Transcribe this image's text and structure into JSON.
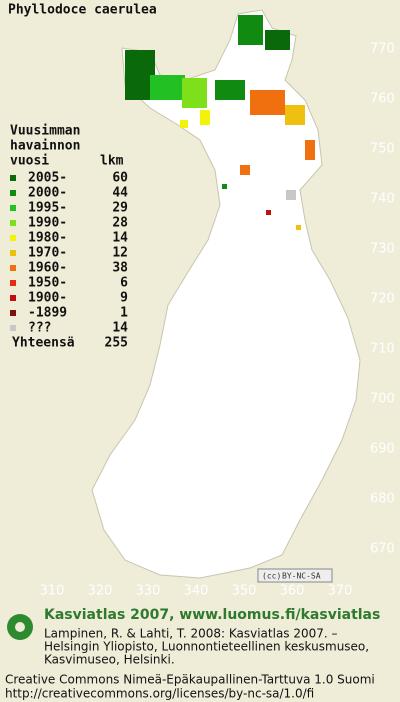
{
  "title": "Phyllodoce caerulea",
  "legend": {
    "heading": [
      "Vuusimman",
      "havainnon"
    ],
    "col1": "vuosi",
    "col2": "lkm",
    "rows": [
      {
        "label": "2005-",
        "count": 60,
        "color": "#0a6a0a"
      },
      {
        "label": "2000-",
        "count": 44,
        "color": "#108a10"
      },
      {
        "label": "1995-",
        "count": 29,
        "color": "#22c022"
      },
      {
        "label": "1990-",
        "count": 28,
        "color": "#7ee01a"
      },
      {
        "label": "1980-",
        "count": 14,
        "color": "#f2f20a"
      },
      {
        "label": "1970-",
        "count": 12,
        "color": "#f0c010"
      },
      {
        "label": "1960-",
        "count": 38,
        "color": "#f07010"
      },
      {
        "label": "1950-",
        "count": 6,
        "color": "#e03010"
      },
      {
        "label": "1900-",
        "count": 9,
        "color": "#c01010"
      },
      {
        "label": "-1899",
        "count": 1,
        "color": "#801010"
      },
      {
        "label": "???",
        "count": 14,
        "color": "#c8c8c8"
      }
    ],
    "total_label": "Yhteensä",
    "total": 255
  },
  "y_grid_labels": [
    770,
    760,
    750,
    740,
    730,
    720,
    710,
    700,
    690,
    680,
    670
  ],
  "x_grid_labels": [
    310,
    320,
    330,
    340,
    350,
    360,
    370
  ],
  "license_badge": "BY-NC-SA",
  "footer": {
    "heading": "Kasviatlas 2007, www.luomus.fi/kasviatlas",
    "citation": [
      "Lampinen, R. & Lahti, T. 2008: Kasviatlas 2007. –",
      "Helsingin Yliopisto, Luonnontieteellinen keskusmuseo,",
      "Kasvimuseo, Helsinki."
    ],
    "license": [
      "Creative Commons Nimeä-Epäkaupallinen-Tarttuva 1.0 Suomi",
      "http://creativecommons.org/licenses/by-nc-sa/1.0/fi"
    ]
  }
}
